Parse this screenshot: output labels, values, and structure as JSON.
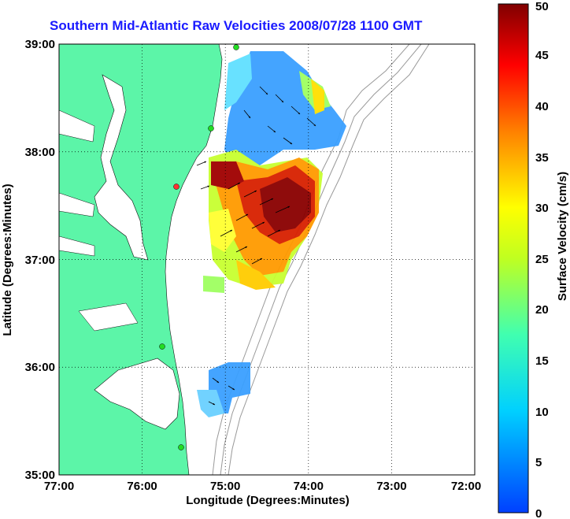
{
  "title": "Southern Mid-Atlantic Raw Velocities 2008/07/28 1100 GMT",
  "xlabel": "Longitude (Degrees:Minutes)",
  "ylabel": "Latitude (Degrees:Minutes)",
  "colorbar_label": "Surface Velocity (cm/s)",
  "x_ticks": [
    "77:00",
    "76:00",
    "75:00",
    "74:00",
    "73:00",
    "72:00"
  ],
  "y_ticks": [
    "39:00",
    "38:00",
    "37:00",
    "36:00",
    "35:00"
  ],
  "colorbar_ticks": [
    "0",
    "5",
    "10",
    "15",
    "20",
    "25",
    "30",
    "35",
    "40",
    "45",
    "50"
  ],
  "colors": {
    "land": "#5cf5a8",
    "title": "#1a1aff",
    "bathymetry": "#999999"
  },
  "chart_data": {
    "type": "heatmap",
    "x_range": [
      -77,
      -72
    ],
    "y_range": [
      35,
      39
    ],
    "value_range": [
      0,
      50
    ],
    "grid": true
  }
}
